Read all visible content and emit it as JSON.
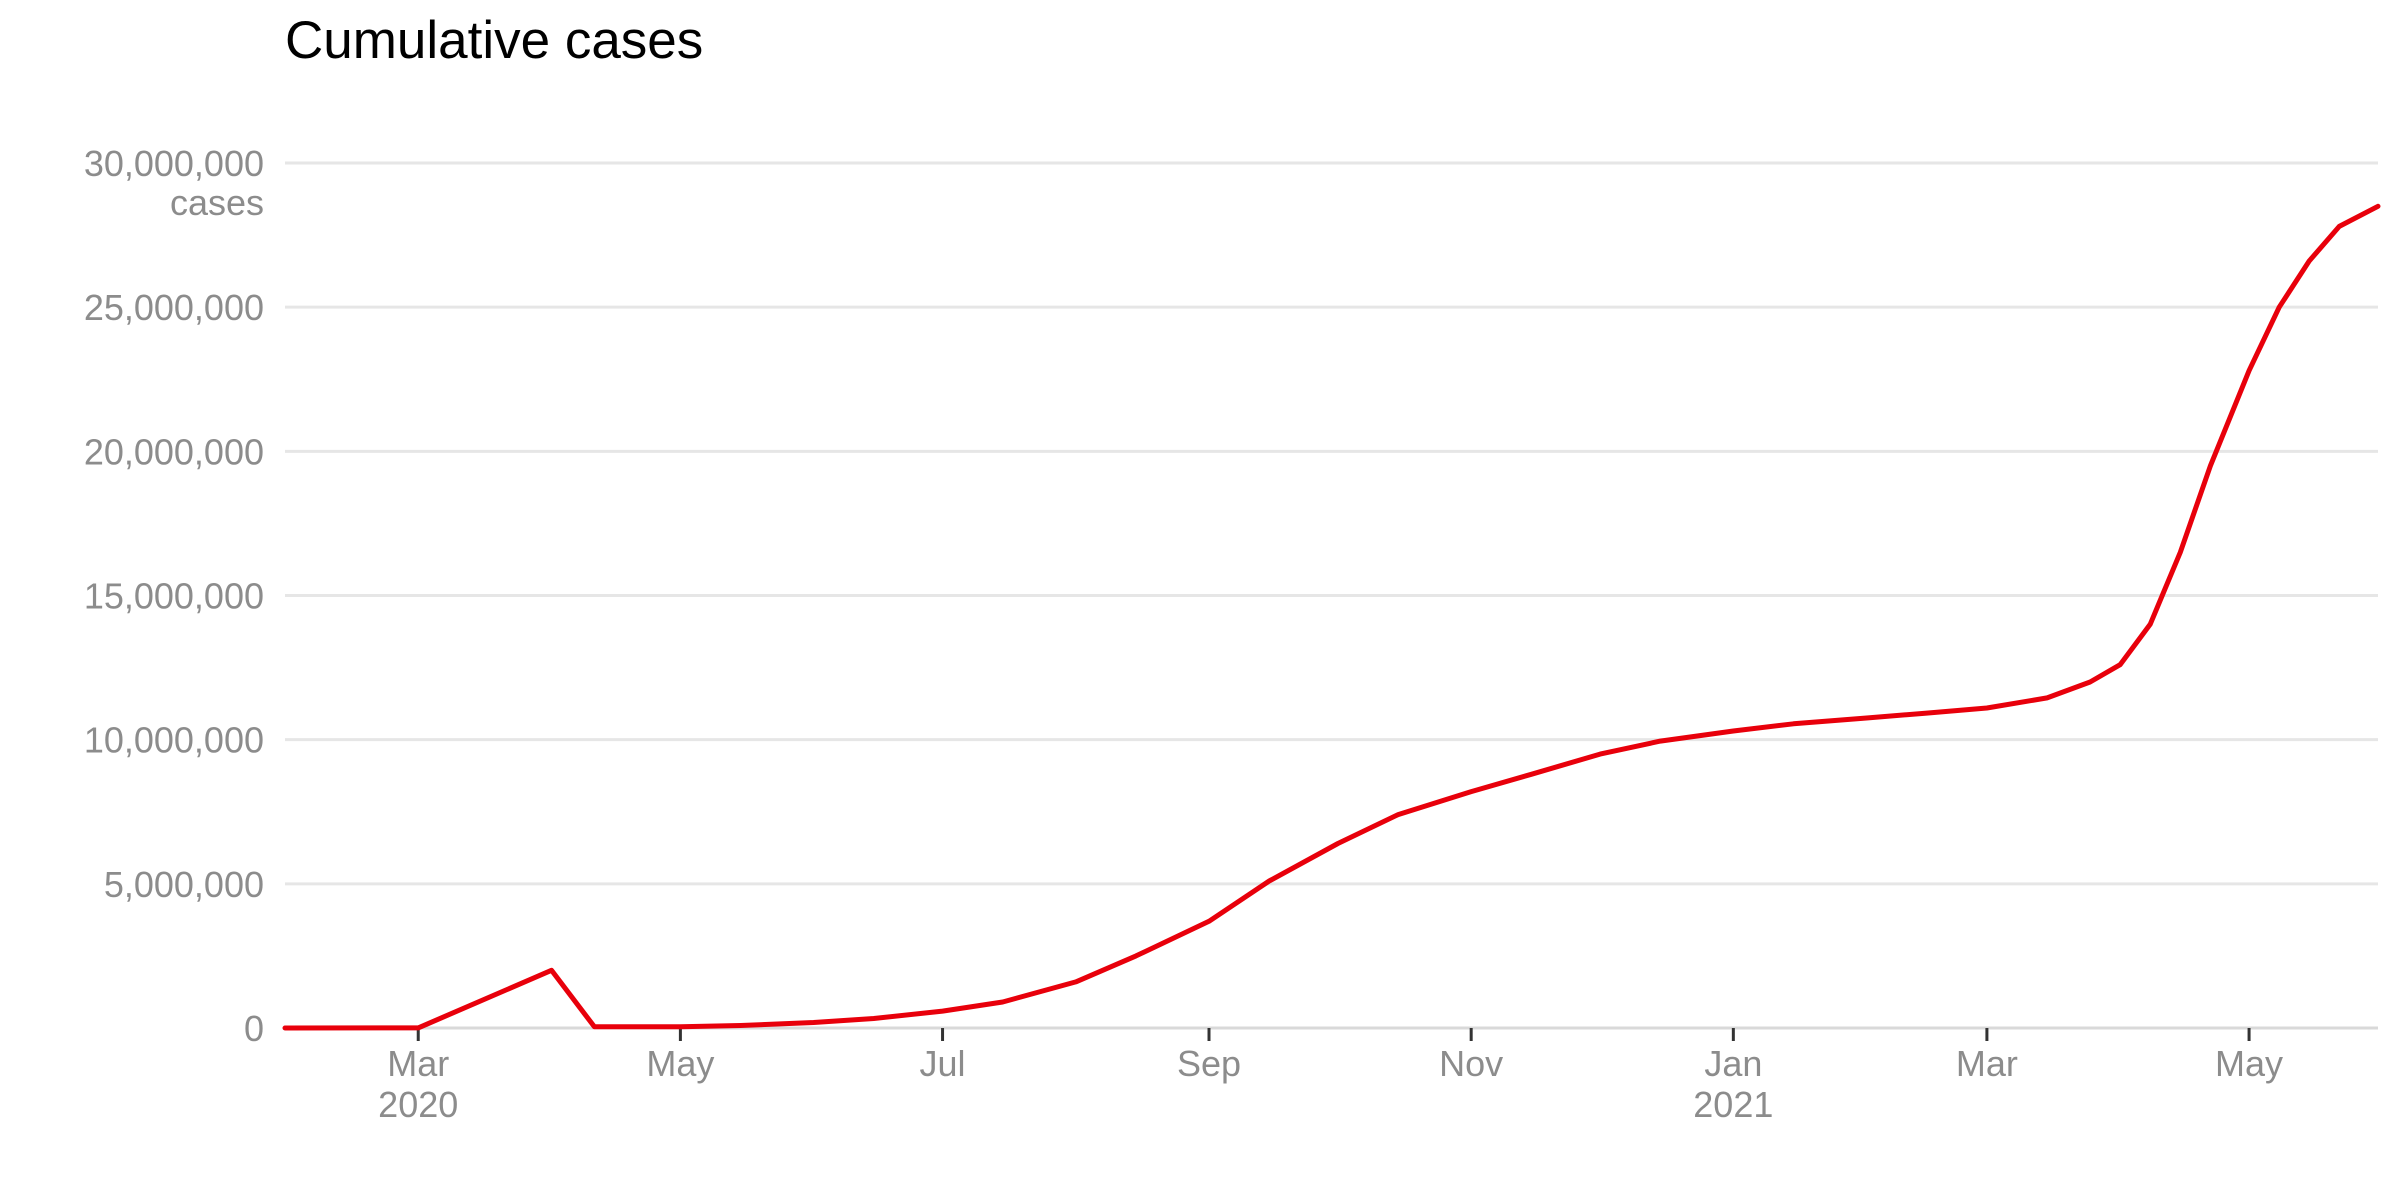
{
  "chart_data": {
    "type": "line",
    "title": "Cumulative cases",
    "xlabel": "",
    "ylabel": "cases",
    "ylim": [
      0,
      30000000
    ],
    "yticks": [
      0,
      5000000,
      10000000,
      15000000,
      20000000,
      25000000,
      30000000
    ],
    "ytick_labels": [
      "0",
      "5,000,000",
      "10,000,000",
      "15,000,000",
      "20,000,000",
      "25,000,000",
      "30,000,000"
    ],
    "y_unit_label": "cases",
    "xlim": [
      "2020-01-30",
      "2021-05-31"
    ],
    "xticks": [
      {
        "date": "2020-03-01",
        "label": "Mar",
        "sublabel": "2020"
      },
      {
        "date": "2020-05-01",
        "label": "May",
        "sublabel": ""
      },
      {
        "date": "2020-07-01",
        "label": "Jul",
        "sublabel": ""
      },
      {
        "date": "2020-09-01",
        "label": "Sep",
        "sublabel": ""
      },
      {
        "date": "2020-11-01",
        "label": "Nov",
        "sublabel": ""
      },
      {
        "date": "2021-01-01",
        "label": "Jan",
        "sublabel": "2021"
      },
      {
        "date": "2021-03-01",
        "label": "Mar",
        "sublabel": ""
      },
      {
        "date": "2021-05-01",
        "label": "May",
        "sublabel": ""
      }
    ],
    "grid": true,
    "legend": "none",
    "series": [
      {
        "color": "#e8000b",
        "points": [
          {
            "x": "2020-01-30",
            "y": 0
          },
          {
            "x": "2020-03-01",
            "y": 3000
          },
          {
            "x": "2020-04-01",
            "y": 2000000
          },
          {
            "x": "2020-04-11",
            "y": 40000
          },
          {
            "x": "2020-05-01",
            "y": 40000
          },
          {
            "x": "2020-05-15",
            "y": 85000
          },
          {
            "x": "2020-06-01",
            "y": 190000
          },
          {
            "x": "2020-06-15",
            "y": 330000
          },
          {
            "x": "2020-07-01",
            "y": 585000
          },
          {
            "x": "2020-07-15",
            "y": 900000
          },
          {
            "x": "2020-08-01",
            "y": 1600000
          },
          {
            "x": "2020-08-15",
            "y": 2500000
          },
          {
            "x": "2020-09-01",
            "y": 3700000
          },
          {
            "x": "2020-09-15",
            "y": 5100000
          },
          {
            "x": "2020-10-01",
            "y": 6400000
          },
          {
            "x": "2020-10-15",
            "y": 7400000
          },
          {
            "x": "2020-11-01",
            "y": 8200000
          },
          {
            "x": "2020-11-15",
            "y": 8800000
          },
          {
            "x": "2020-12-01",
            "y": 9500000
          },
          {
            "x": "2020-12-15",
            "y": 9950000
          },
          {
            "x": "2021-01-01",
            "y": 10300000
          },
          {
            "x": "2021-01-15",
            "y": 10550000
          },
          {
            "x": "2021-02-01",
            "y": 10750000
          },
          {
            "x": "2021-02-15",
            "y": 10920000
          },
          {
            "x": "2021-03-01",
            "y": 11100000
          },
          {
            "x": "2021-03-15",
            "y": 11450000
          },
          {
            "x": "2021-03-25",
            "y": 12000000
          },
          {
            "x": "2021-04-01",
            "y": 12600000
          },
          {
            "x": "2021-04-08",
            "y": 14000000
          },
          {
            "x": "2021-04-15",
            "y": 16500000
          },
          {
            "x": "2021-04-22",
            "y": 19500000
          },
          {
            "x": "2021-05-01",
            "y": 22800000
          },
          {
            "x": "2021-05-08",
            "y": 25000000
          },
          {
            "x": "2021-05-15",
            "y": 26600000
          },
          {
            "x": "2021-05-22",
            "y": 27800000
          },
          {
            "x": "2021-05-31",
            "y": 28500000
          }
        ]
      }
    ]
  }
}
